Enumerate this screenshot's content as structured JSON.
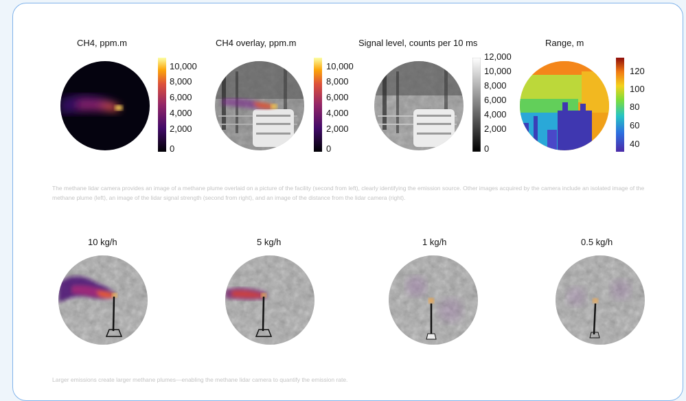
{
  "panels": [
    {
      "title": "CH4, ppm.m",
      "ticks": [
        "10,000",
        "8,000",
        "6,000",
        "4,000",
        "2,000",
        "0"
      ]
    },
    {
      "title": "CH4 overlay, ppm.m",
      "ticks": [
        "10,000",
        "8,000",
        "6,000",
        "4,000",
        "2,000",
        "0"
      ]
    },
    {
      "title": "Signal level, counts per 10 ms",
      "ticks": [
        "12,000",
        "10,000",
        "8,000",
        "6,000",
        "4,000",
        "2,000",
        "0"
      ]
    },
    {
      "title": "Range, m",
      "ticks": [
        "120",
        "100",
        "80",
        "60",
        "40"
      ]
    }
  ],
  "caption1": "The methane lidar camera provides an image of a methane plume overlaid on a picture of the facility (second from left), clearly identifying the emission source. Other images acquired by the camera include an isolated image of the methane plume (left), an image of the lidar signal strength (second from right), and an image of the distance from the lidar camera (right).",
  "rates": [
    "10 kg/h",
    "5 kg/h",
    "1 kg/h",
    "0.5 kg/h"
  ],
  "caption2": "Larger emissions create larger methane plumes—enabling the methane lidar camera to quantify the emission rate.",
  "colors": {
    "border": "#7fb2ea",
    "caption": "#c3c3c3",
    "background": "#eef5fb"
  }
}
